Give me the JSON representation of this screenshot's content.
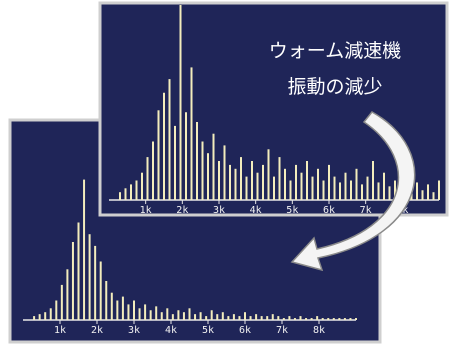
{
  "annotation_lines": [
    "ウォーム減速機",
    "振動の減少"
  ],
  "chart_data": [
    {
      "type": "bar",
      "color": "#f3edbd",
      "background": "#1f2558",
      "x": [
        300,
        450,
        600,
        750,
        900,
        1050,
        1200,
        1350,
        1500,
        1650,
        1800,
        1950,
        2100,
        2250,
        2400,
        2550,
        2700,
        2850,
        3000,
        3150,
        3300,
        3450,
        3600,
        3750,
        3900,
        4050,
        4200,
        4350,
        4500,
        4650,
        4800,
        4950,
        5100,
        5250,
        5400,
        5550,
        5700,
        5850,
        6000,
        6150,
        6300,
        6450,
        6600,
        6750,
        6900,
        7050,
        7200,
        7350,
        7500,
        7650,
        7800,
        7950,
        8100,
        8250,
        8400,
        8550,
        8700,
        8850,
        9000
      ],
      "values": [
        4,
        6,
        8,
        10,
        14,
        22,
        30,
        46,
        55,
        62,
        38,
        100,
        45,
        68,
        40,
        30,
        24,
        34,
        20,
        28,
        18,
        16,
        22,
        12,
        20,
        14,
        18,
        26,
        12,
        22,
        16,
        10,
        18,
        14,
        20,
        12,
        16,
        10,
        18,
        12,
        9,
        14,
        10,
        16,
        8,
        12,
        20,
        9,
        14,
        7,
        10,
        8,
        12,
        6,
        9,
        5,
        8,
        4,
        10
      ],
      "xlim": [
        0,
        9000
      ],
      "ylim": [
        0,
        100
      ],
      "xticks": [
        {
          "value": 1000,
          "label": "1k"
        },
        {
          "value": 2000,
          "label": "2k"
        },
        {
          "value": 3000,
          "label": "3k"
        },
        {
          "value": 4000,
          "label": "4k"
        },
        {
          "value": 5000,
          "label": "5k"
        },
        {
          "value": 6000,
          "label": "6k"
        },
        {
          "value": 7000,
          "label": "7k"
        },
        {
          "value": 8000,
          "label": "8k"
        }
      ]
    },
    {
      "type": "bar",
      "color": "#f3edbd",
      "background": "#1f2558",
      "x": [
        300,
        450,
        600,
        750,
        900,
        1050,
        1200,
        1350,
        1500,
        1650,
        1800,
        1950,
        2100,
        2250,
        2400,
        2550,
        2700,
        2850,
        3000,
        3150,
        3300,
        3450,
        3600,
        3750,
        3900,
        4050,
        4200,
        4350,
        4500,
        4650,
        4800,
        4950,
        5100,
        5250,
        5400,
        5550,
        5700,
        5850,
        6000,
        6150,
        6300,
        6450,
        6600,
        6750,
        6900,
        7050,
        7200,
        7350,
        7500,
        7650,
        7800,
        7950,
        8100,
        8250,
        8400,
        8550,
        8700,
        8850,
        9000
      ],
      "values": [
        2,
        3,
        4,
        6,
        10,
        18,
        26,
        40,
        50,
        72,
        44,
        38,
        30,
        20,
        14,
        10,
        12,
        8,
        10,
        6,
        8,
        5,
        7,
        4,
        6,
        3,
        5,
        4,
        6,
        3,
        4,
        2,
        5,
        3,
        4,
        2,
        3,
        2,
        4,
        2,
        3,
        2,
        2,
        3,
        2,
        1,
        2,
        1,
        2,
        1,
        1,
        2,
        1,
        1,
        1,
        1,
        1,
        1,
        1
      ],
      "xlim": [
        0,
        9000
      ],
      "ylim": [
        0,
        100
      ],
      "xticks": [
        {
          "value": 1000,
          "label": "1k"
        },
        {
          "value": 2000,
          "label": "2k"
        },
        {
          "value": 3000,
          "label": "3k"
        },
        {
          "value": 4000,
          "label": "4k"
        },
        {
          "value": 5000,
          "label": "5k"
        },
        {
          "value": 6000,
          "label": "6k"
        },
        {
          "value": 7000,
          "label": "7k"
        },
        {
          "value": 8000,
          "label": "8k"
        }
      ]
    }
  ]
}
